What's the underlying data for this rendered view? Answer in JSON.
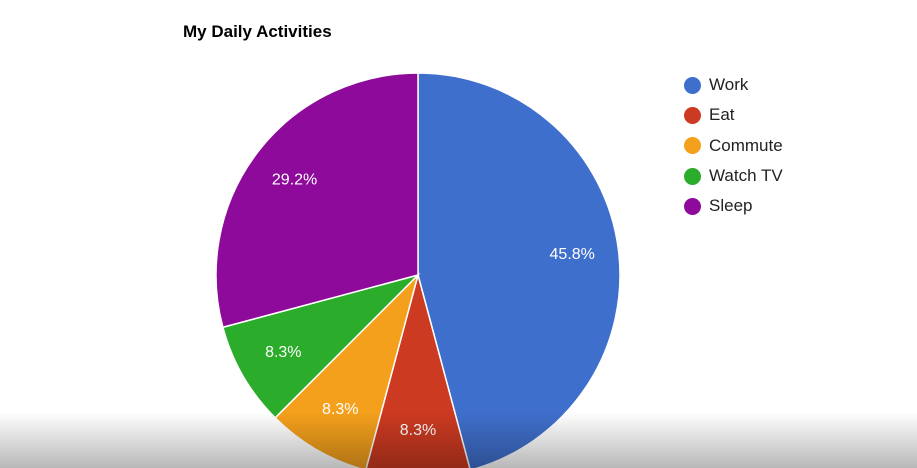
{
  "chart_data": {
    "type": "pie",
    "title": "My Daily Activities",
    "categories": [
      "Work",
      "Eat",
      "Commute",
      "Watch TV",
      "Sleep"
    ],
    "values": [
      11,
      2,
      2,
      2,
      7
    ],
    "labels": [
      "45.8%",
      "8.3%",
      "8.3%",
      "8.3%",
      "29.2%"
    ],
    "colors": [
      "#3f6fcc",
      "#cc3a21",
      "#f4a01c",
      "#2bac2b",
      "#8e0a9b"
    ],
    "legend_position": "right"
  }
}
